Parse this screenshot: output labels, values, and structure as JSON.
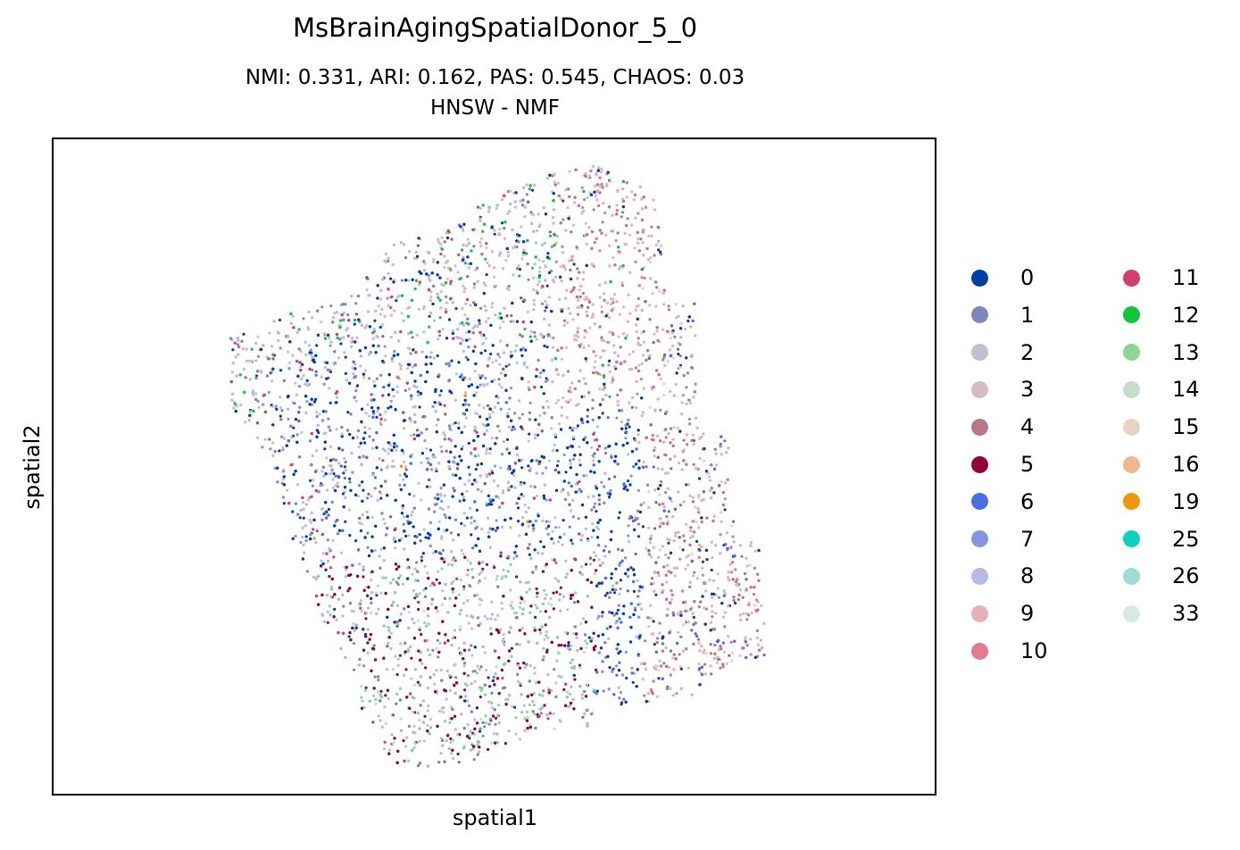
{
  "chart_data": {
    "type": "scatter",
    "title": "MsBrainAgingSpatialDonor_5_0",
    "subtitle_line1": "NMI: 0.331,  ARI: 0.162,  PAS: 0.545,  CHAOS: 0.03",
    "subtitle_line2": "HNSW - NMF",
    "xlabel": "spatial1",
    "ylabel": "spatial2",
    "grid": false,
    "legend_position": "right",
    "categories": [
      {
        "label": "0",
        "color": "#023fa5"
      },
      {
        "label": "1",
        "color": "#7d87b9"
      },
      {
        "label": "2",
        "color": "#bec1d4"
      },
      {
        "label": "3",
        "color": "#d6bcc0"
      },
      {
        "label": "4",
        "color": "#bb7784"
      },
      {
        "label": "5",
        "color": "#8e063b"
      },
      {
        "label": "6",
        "color": "#4a6fe3"
      },
      {
        "label": "7",
        "color": "#8595e1"
      },
      {
        "label": "8",
        "color": "#b5bbe3"
      },
      {
        "label": "9",
        "color": "#e6afb9"
      },
      {
        "label": "10",
        "color": "#e07b91"
      },
      {
        "label": "11",
        "color": "#d33f6a"
      },
      {
        "label": "12",
        "color": "#11c638"
      },
      {
        "label": "13",
        "color": "#8dd593"
      },
      {
        "label": "14",
        "color": "#c6dec7"
      },
      {
        "label": "15",
        "color": "#ead3c6"
      },
      {
        "label": "16",
        "color": "#f0b98d"
      },
      {
        "label": "19",
        "color": "#ef9708"
      },
      {
        "label": "25",
        "color": "#0fcfc0"
      },
      {
        "label": "26",
        "color": "#9cded6"
      },
      {
        "label": "33",
        "color": "#d5eae7"
      }
    ]
  }
}
